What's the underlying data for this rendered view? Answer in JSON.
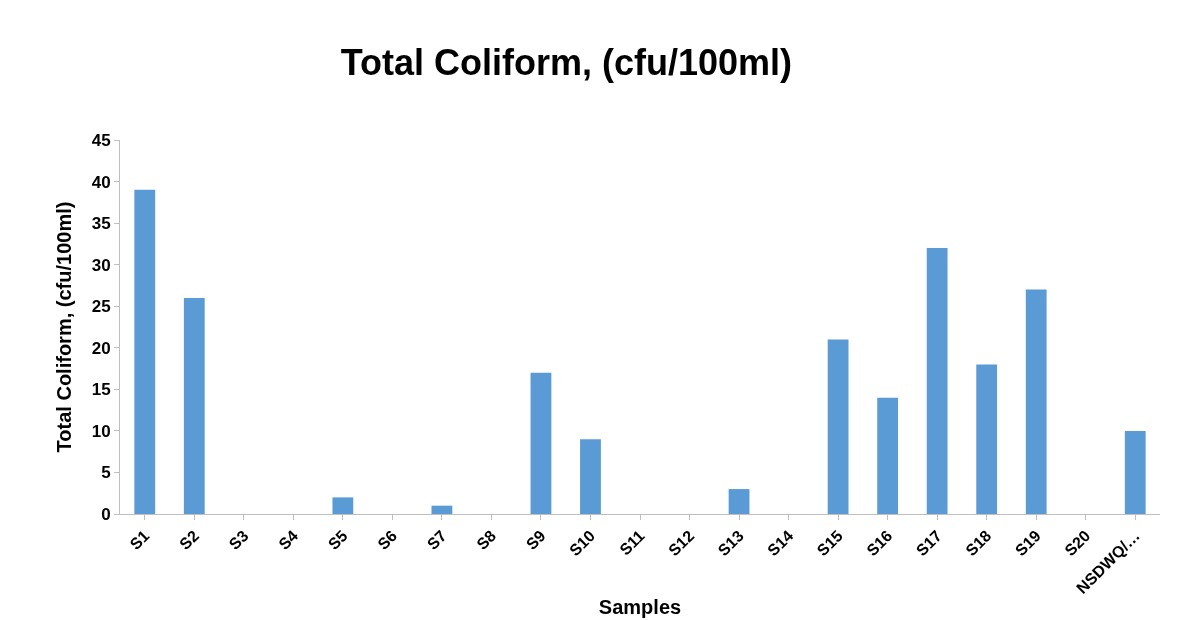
{
  "chart_data": {
    "type": "bar",
    "title": "Total Coliform, (cfu/100ml)",
    "xlabel": "Samples",
    "ylabel": "Total Coliform, (cfu/100ml)",
    "categories": [
      "S1",
      "S2",
      "S3",
      "S4",
      "S5",
      "S6",
      "S7",
      "S8",
      "S9",
      "S10",
      "S11",
      "S12",
      "S13",
      "S14",
      "S15",
      "S16",
      "S17",
      "S18",
      "S19",
      "S20",
      "NSDWQ/…"
    ],
    "values": [
      39,
      26,
      0,
      0,
      2,
      0,
      1,
      0,
      17,
      9,
      0,
      0,
      3,
      0,
      21,
      14,
      32,
      18,
      27,
      0,
      10
    ],
    "color": "#5b9bd5",
    "ylim": [
      0,
      45
    ],
    "yticks": [
      0,
      5,
      10,
      15,
      20,
      25,
      30,
      35,
      40,
      45
    ],
    "grid": false
  }
}
